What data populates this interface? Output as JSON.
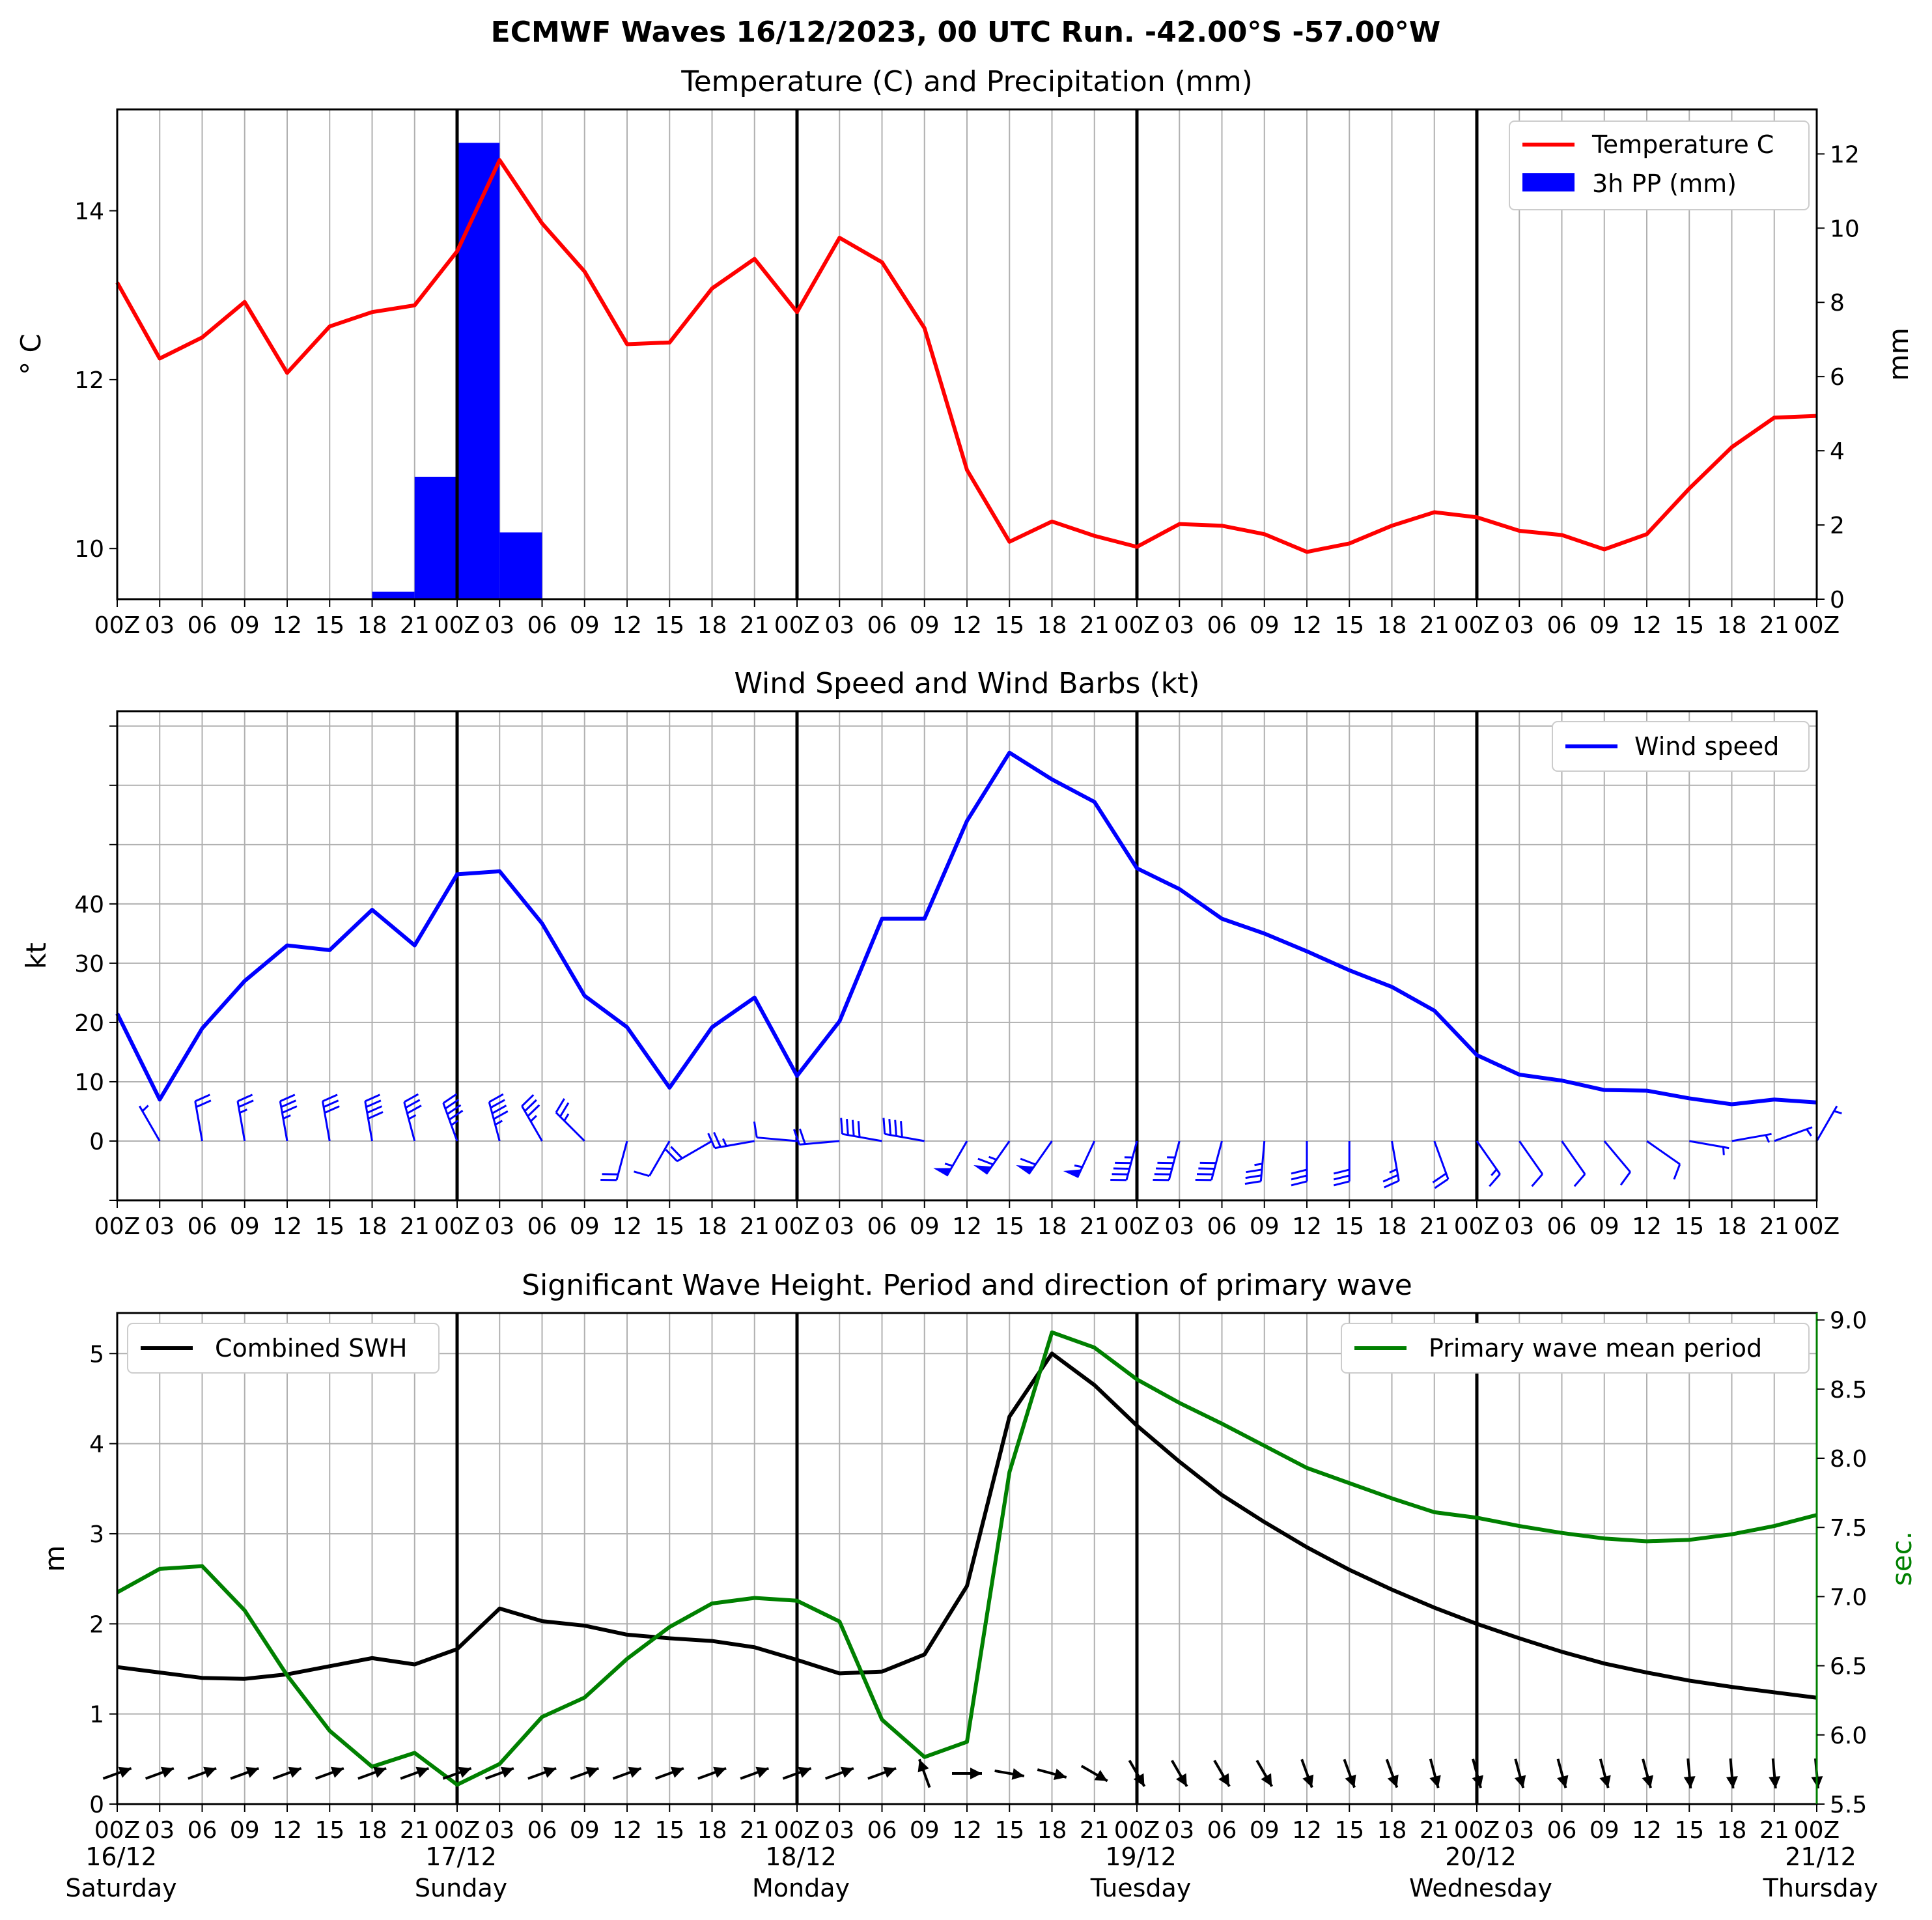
{
  "title": "ECMWF Waves 16/12/2023, 00 UTC Run. -42.00°S -57.00°W",
  "colors": {
    "temperature": "#ff0000",
    "precipitation": "#0000ff",
    "wind": "#0000ff",
    "swh": "#000000",
    "period": "#008000",
    "grid": "#b0b0b0"
  },
  "x_tick_labels": [
    "00Z",
    "03",
    "06",
    "09",
    "12",
    "15",
    "18",
    "21",
    "00Z",
    "03",
    "06",
    "09",
    "12",
    "15",
    "18",
    "21",
    "00Z",
    "03",
    "06",
    "09",
    "12",
    "15",
    "18",
    "21",
    "00Z",
    "03",
    "06",
    "09",
    "12",
    "15",
    "18",
    "21",
    "00Z",
    "03",
    "06",
    "09",
    "12",
    "15",
    "18",
    "21",
    "00Z"
  ],
  "day_labels": [
    {
      "date": "16/12",
      "day": "Saturday"
    },
    {
      "date": "17/12",
      "day": "Sunday"
    },
    {
      "date": "18/12",
      "day": "Monday"
    },
    {
      "date": "19/12",
      "day": "Tuesday"
    },
    {
      "date": "20/12",
      "day": "Wednesday"
    },
    {
      "date": "21/12",
      "day": "Thursday"
    }
  ],
  "chart_data": [
    {
      "type": "line",
      "title": "Temperature (C) and Precipitation (mm)",
      "ylabel": "$^\\circ$C",
      "ylabel_display": "° C",
      "ylabel_right": "mm",
      "ylim": [
        9.4,
        15.2
      ],
      "ylim_right": [
        0,
        13.2
      ],
      "yticks": [
        "10",
        "12",
        "14"
      ],
      "yticks_right": [
        "0",
        "2",
        "4",
        "6",
        "8",
        "10",
        "12"
      ],
      "grid": true,
      "legend_position": "top-right",
      "x": [
        "00Z",
        "03",
        "06",
        "09",
        "12",
        "15",
        "18",
        "21",
        "00Z",
        "03",
        "06",
        "09",
        "12",
        "15",
        "18",
        "21",
        "00Z",
        "03",
        "06",
        "09",
        "12",
        "15",
        "18",
        "21",
        "00Z",
        "03",
        "06",
        "09",
        "12",
        "15",
        "18",
        "21",
        "00Z",
        "03",
        "06",
        "09",
        "12",
        "15",
        "18",
        "21",
        "00Z"
      ],
      "series": [
        {
          "name": "Temperature C",
          "type": "line",
          "values": [
            13.15,
            12.25,
            12.5,
            12.92,
            12.08,
            12.63,
            12.8,
            12.88,
            13.52,
            14.6,
            13.85,
            13.28,
            12.42,
            12.44,
            13.08,
            13.43,
            12.8,
            13.68,
            13.39,
            12.61,
            10.93,
            10.08,
            10.32,
            10.15,
            10.02,
            10.29,
            10.27,
            10.17,
            9.96,
            10.06,
            10.27,
            10.43,
            10.37,
            10.21,
            10.16,
            9.99,
            10.17,
            10.71,
            11.2,
            11.55,
            11.57
          ]
        },
        {
          "name": "3h PP (mm)",
          "type": "bar",
          "values": [
            0,
            0,
            0,
            0,
            0,
            0,
            0,
            0.2,
            3.3,
            12.3,
            1.8,
            0,
            0,
            0,
            0,
            0,
            0,
            0,
            0,
            0,
            0,
            0,
            0,
            0,
            0,
            0,
            0,
            0,
            0,
            0,
            0,
            0,
            0,
            0,
            0,
            0,
            0,
            0,
            0,
            0,
            0
          ]
        }
      ]
    },
    {
      "type": "line",
      "title": "Wind Speed and Wind Barbs (kt)",
      "ylabel": "kt",
      "ylim": [
        -10,
        72.5
      ],
      "yticks": [
        "0",
        "10",
        "20",
        "30",
        "40"
      ],
      "grid": true,
      "legend_position": "top-right",
      "x": [
        "00Z",
        "03",
        "06",
        "09",
        "12",
        "15",
        "18",
        "21",
        "00Z",
        "03",
        "06",
        "09",
        "12",
        "15",
        "18",
        "21",
        "00Z",
        "03",
        "06",
        "09",
        "12",
        "15",
        "18",
        "21",
        "00Z",
        "03",
        "06",
        "09",
        "12",
        "15",
        "18",
        "21",
        "00Z",
        "03",
        "06",
        "09",
        "12",
        "15",
        "18",
        "21",
        "00Z"
      ],
      "series": [
        {
          "name": "Wind speed",
          "type": "line",
          "values": [
            21.5,
            7,
            19,
            27,
            33,
            32.2,
            39,
            33,
            45,
            45.5,
            36.7,
            24.5,
            19.2,
            9,
            19.2,
            24.2,
            11,
            20.2,
            37.5,
            37.5,
            54,
            65.5,
            61,
            57.2,
            46,
            42.5,
            37.5,
            35,
            32,
            28.8,
            26,
            22,
            14.5,
            11.2,
            10.2,
            8.6,
            8.5,
            7.2,
            6.2,
            7,
            6.5
          ]
        }
      ],
      "barbs": {
        "speed_kt": [
          21.5,
          7,
          19,
          27,
          33,
          32.2,
          39,
          33,
          45,
          45.5,
          36.7,
          24.5,
          19.2,
          9,
          19.2,
          24.2,
          11,
          20.2,
          37.5,
          37.5,
          54,
          65.5,
          61,
          57.2,
          46,
          42.5,
          37.5,
          35,
          32,
          28.8,
          26,
          22,
          14.5,
          11.2,
          10.2,
          8.6,
          8.5,
          7.2,
          6.2,
          7,
          6.5
        ],
        "from_direction_deg": [
          330,
          330,
          350,
          350,
          350,
          350,
          350,
          345,
          340,
          345,
          330,
          315,
          195,
          210,
          240,
          260,
          275,
          265,
          280,
          280,
          210,
          215,
          215,
          205,
          195,
          195,
          195,
          185,
          180,
          180,
          170,
          160,
          145,
          145,
          145,
          140,
          125,
          100,
          80,
          70,
          30
        ]
      }
    },
    {
      "type": "line",
      "title": "Significant Wave Height. Period and direction of primary wave",
      "ylabel": "m",
      "ylabel_right": "sec.",
      "ylim": [
        0,
        5.45
      ],
      "ylim_right": [
        5.5,
        9.05
      ],
      "yticks": [
        "0",
        "1",
        "2",
        "3",
        "4",
        "5"
      ],
      "yticks_right": [
        "5.5",
        "6.0",
        "6.5",
        "7.0",
        "7.5",
        "8.0",
        "8.5",
        "9.0"
      ],
      "grid": true,
      "legend_position_left": "top-left",
      "legend_position_right": "top-right",
      "x": [
        "00Z",
        "03",
        "06",
        "09",
        "12",
        "15",
        "18",
        "21",
        "00Z",
        "03",
        "06",
        "09",
        "12",
        "15",
        "18",
        "21",
        "00Z",
        "03",
        "06",
        "09",
        "12",
        "15",
        "18",
        "21",
        "00Z",
        "03",
        "06",
        "09",
        "12",
        "15",
        "18",
        "21",
        "00Z",
        "03",
        "06",
        "09",
        "12",
        "15",
        "18",
        "21",
        "00Z"
      ],
      "series": [
        {
          "name": "Combined SWH",
          "axis": "left",
          "values": [
            1.52,
            1.46,
            1.4,
            1.39,
            1.44,
            1.53,
            1.62,
            1.55,
            1.72,
            2.17,
            2.03,
            1.98,
            1.88,
            1.84,
            1.81,
            1.74,
            1.6,
            1.45,
            1.47,
            1.66,
            2.42,
            4.3,
            5,
            4.65,
            4.2,
            3.8,
            3.43,
            3.13,
            2.85,
            2.6,
            2.38,
            2.18,
            2,
            1.84,
            1.69,
            1.56,
            1.46,
            1.37,
            1.3,
            1.24,
            1.18
          ]
        },
        {
          "name": "Primary wave mean period",
          "axis": "right",
          "values": [
            7.03,
            7.2,
            7.22,
            6.9,
            6.43,
            6.03,
            5.77,
            5.87,
            5.64,
            5.79,
            6.13,
            6.27,
            6.55,
            6.78,
            6.95,
            6.99,
            6.97,
            6.82,
            6.11,
            5.84,
            5.95,
            7.9,
            8.91,
            8.8,
            8.57,
            8.4,
            8.25,
            8.09,
            7.93,
            7.82,
            7.71,
            7.61,
            7.57,
            7.51,
            7.46,
            7.42,
            7.4,
            7.41,
            7.45,
            7.51,
            7.59
          ]
        }
      ],
      "wave_direction_deg": [
        250,
        250,
        250,
        250,
        250,
        250,
        250,
        250,
        250,
        250,
        250,
        250,
        250,
        250,
        250,
        250,
        250,
        250,
        250,
        160,
        270,
        280,
        285,
        300,
        330,
        330,
        330,
        330,
        340,
        340,
        340,
        345,
        345,
        345,
        345,
        345,
        345,
        355,
        355,
        355,
        355
      ]
    }
  ]
}
